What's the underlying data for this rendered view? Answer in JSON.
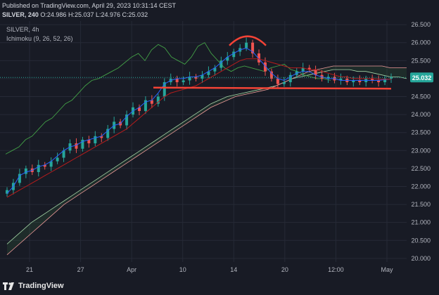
{
  "header": {
    "published": "Published on TradingView.com, April 29, 2023 10:31:14 CEST",
    "symbol": "SILVER, 240",
    "open_label": "O:",
    "open": "24.986",
    "high_label": "H:",
    "high": "25.037",
    "low_label": "L:",
    "low": "24.976",
    "close_label": "C:",
    "close": "25.032"
  },
  "legend": {
    "title": "SILVER, 4h",
    "indicator": "Ichimoku (9, 26, 52, 26)"
  },
  "footer": {
    "brand": "TradingView"
  },
  "colors": {
    "background": "#181b25",
    "grid": "#262a36",
    "candle_up": "#26a69a",
    "candle_down": "#ef5350",
    "conversion_line": "#2962ff",
    "base_line": "#b71c1c",
    "lagging_span": "#43a047",
    "leading_a": "#a5d6a7",
    "leading_b": "#ef9a9a",
    "annotation": "#f44336",
    "price_badge": "#26a69a"
  },
  "chart_data": {
    "type": "candlestick",
    "symbol": "SILVER",
    "timeframe": "4h",
    "x_tick_labels": [
      "21",
      "27",
      "Apr",
      "10",
      "14",
      "20",
      "12:00",
      "May"
    ],
    "y_ticks": [
      "26.500",
      "26.000",
      "25.500",
      "25.000",
      "24.500",
      "24.000",
      "23.500",
      "23.000",
      "22.500",
      "22.000",
      "21.500",
      "21.000",
      "20.500",
      "20.000"
    ],
    "ylim": [
      19.9,
      26.6
    ],
    "current_price": "25.032",
    "close_path": [
      21.9,
      22.1,
      22.35,
      22.5,
      22.4,
      22.6,
      22.55,
      22.7,
      22.8,
      23.0,
      23.2,
      23.05,
      23.3,
      23.2,
      23.4,
      23.35,
      23.6,
      23.8,
      23.7,
      24.0,
      24.2,
      24.1,
      24.4,
      24.3,
      24.5,
      24.9,
      25.0,
      24.9,
      24.95,
      25.05,
      25.0,
      25.1,
      25.2,
      25.3,
      25.5,
      25.6,
      25.75,
      25.85,
      26.0,
      25.7,
      25.45,
      25.2,
      25.0,
      24.85,
      24.9,
      25.1,
      25.2,
      25.3,
      25.25,
      25.1,
      25.0,
      25.05,
      24.95,
      25.0,
      24.9,
      24.95,
      24.9,
      25.0,
      24.95,
      24.9,
      25.0,
      25.032
    ],
    "ichimoku": {
      "conversion": [
        21.8,
        22.0,
        22.3,
        22.4,
        22.45,
        22.55,
        22.6,
        22.7,
        22.85,
        23.0,
        23.1,
        23.15,
        23.25,
        23.3,
        23.35,
        23.4,
        23.55,
        23.7,
        23.75,
        23.95,
        24.1,
        24.2,
        24.35,
        24.4,
        24.6,
        24.85,
        24.95,
        25.0,
        25.0,
        25.05,
        25.05,
        25.1,
        25.2,
        25.3,
        25.45,
        25.6,
        25.7,
        25.8,
        25.85,
        25.75,
        25.55,
        25.35,
        25.15,
        25.0,
        24.95,
        25.05,
        25.15,
        25.2,
        25.2,
        25.1,
        25.05,
        25.0,
        25.0,
        24.95,
        24.95,
        24.95,
        24.95,
        24.95,
        24.95,
        24.95,
        24.97,
        24.98
      ],
      "base": [
        21.7,
        21.8,
        21.9,
        22.0,
        22.1,
        22.2,
        22.3,
        22.4,
        22.5,
        22.6,
        22.7,
        22.8,
        22.9,
        23.0,
        23.1,
        23.2,
        23.3,
        23.4,
        23.5,
        23.6,
        23.75,
        23.9,
        24.05,
        24.2,
        24.35,
        24.5,
        24.6,
        24.65,
        24.7,
        24.75,
        24.8,
        24.9,
        25.0,
        25.1,
        25.2,
        25.3,
        25.4,
        25.5,
        25.55,
        25.55,
        25.55,
        25.5,
        25.45,
        25.4,
        25.35,
        25.3,
        25.3,
        25.3,
        25.25,
        25.25,
        25.2,
        25.15,
        25.1,
        25.05,
        25.05,
        25.0,
        25.0,
        25.0,
        25.0,
        24.98,
        24.98,
        24.98
      ],
      "lagging": [
        22.9,
        23.0,
        23.1,
        23.3,
        23.4,
        23.6,
        23.8,
        23.9,
        24.1,
        24.3,
        24.4,
        24.6,
        24.8,
        24.95,
        25.0,
        25.1,
        25.2,
        25.3,
        25.45,
        25.6,
        25.7,
        25.5,
        25.8,
        25.95,
        25.85,
        25.6,
        25.5,
        25.4,
        25.6,
        25.9,
        26.0,
        25.7,
        25.5,
        25.3,
        25.2,
        25.3,
        25.35,
        25.3,
        25.25,
        25.2,
        25.3,
        25.35,
        25.4,
        25.25,
        25.2,
        25.1,
        25.05,
        25.0,
        25.0,
        24.95
      ],
      "leading_a": [
        20.4,
        20.6,
        20.8,
        21.0,
        21.15,
        21.3,
        21.45,
        21.6,
        21.75,
        21.9,
        22.05,
        22.2,
        22.35,
        22.5,
        22.65,
        22.8,
        22.95,
        23.1,
        23.25,
        23.4,
        23.55,
        23.7,
        23.85,
        24.0,
        24.15,
        24.3,
        24.4,
        24.5,
        24.55,
        24.6,
        24.65,
        24.7,
        24.75,
        24.8,
        24.9,
        25.0,
        25.05,
        25.1,
        25.15,
        25.2,
        25.25,
        25.25,
        25.25,
        25.2,
        25.2,
        25.15,
        25.1,
        25.05,
        25.05,
        25.0
      ],
      "leading_b": [
        20.1,
        20.3,
        20.5,
        20.7,
        20.9,
        21.1,
        21.3,
        21.5,
        21.65,
        21.8,
        21.95,
        22.1,
        22.25,
        22.4,
        22.55,
        22.7,
        22.85,
        23.0,
        23.15,
        23.3,
        23.45,
        23.6,
        23.75,
        23.9,
        24.05,
        24.2,
        24.3,
        24.4,
        24.5,
        24.55,
        24.6,
        24.65,
        24.7,
        24.8,
        24.9,
        25.0,
        25.1,
        25.2,
        25.25,
        25.3,
        25.35,
        25.35,
        25.35,
        25.35,
        25.35,
        25.35,
        25.35,
        25.3,
        25.3,
        25.3
      ]
    },
    "annotations": [
      {
        "type": "support_line",
        "from_price": 24.75,
        "to_price": 24.72
      },
      {
        "type": "top_arc",
        "near_price": 26.0
      }
    ]
  }
}
